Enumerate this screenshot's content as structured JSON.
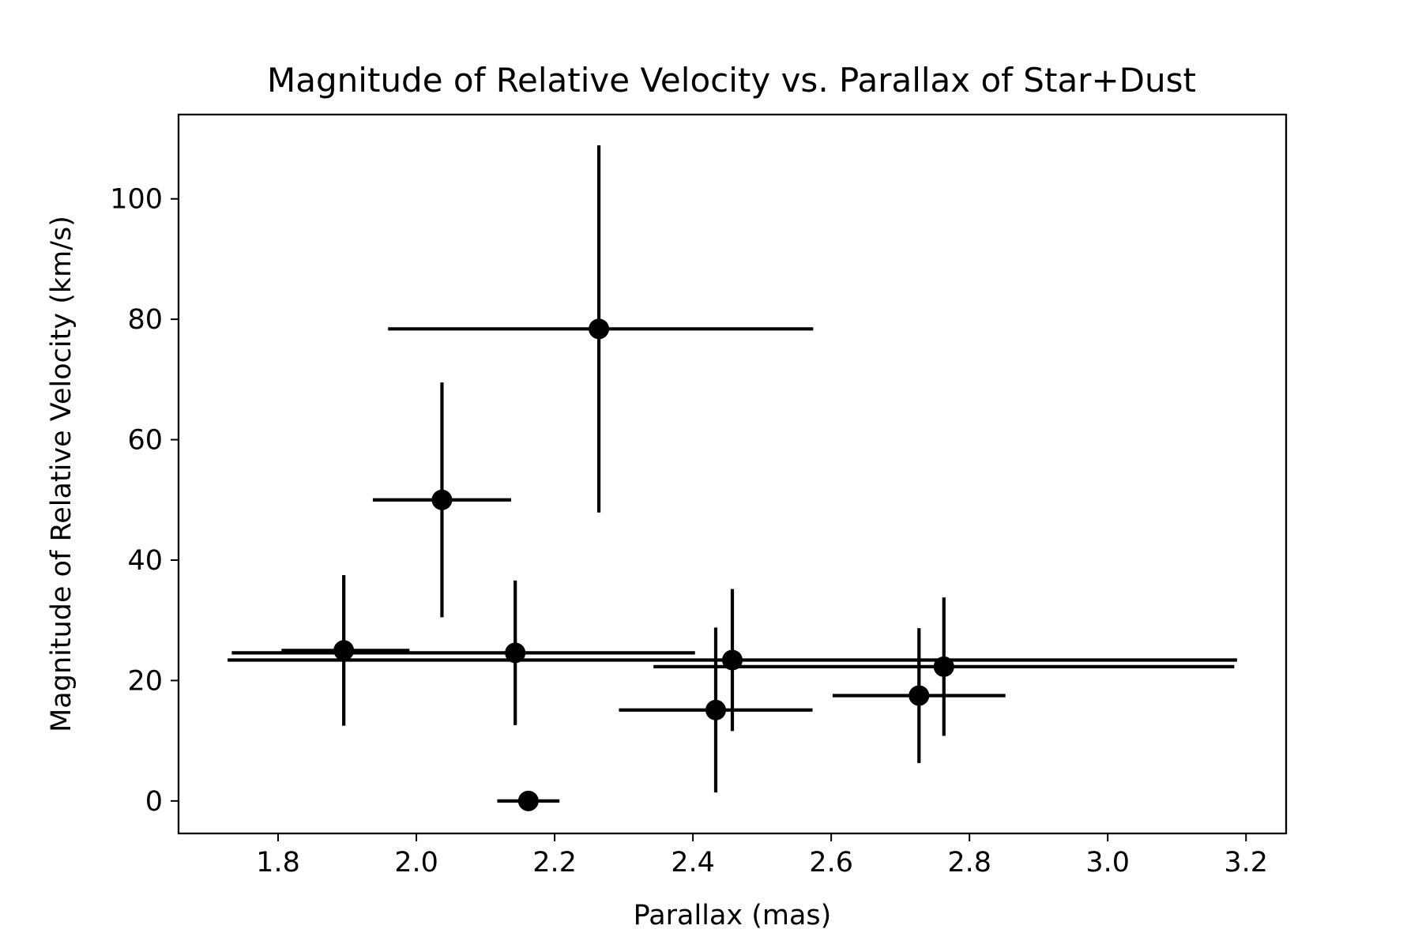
{
  "chart_data": {
    "type": "scatter",
    "title": "Magnitude of Relative Velocity vs. Parallax of Star+Dust",
    "xlabel": "Parallax (mas)",
    "ylabel": "Magnitude of Relative Velocity (km/s)",
    "xlim": [
      1.656,
      3.258
    ],
    "ylim": [
      -5.4,
      114
    ],
    "xticks": [
      1.8,
      2.0,
      2.2,
      2.4,
      2.6,
      2.8,
      3.0,
      3.2
    ],
    "xtick_labels": [
      "1.8",
      "2.0",
      "2.2",
      "2.4",
      "2.6",
      "2.8",
      "3.0",
      "3.2"
    ],
    "yticks": [
      0,
      20,
      40,
      60,
      80,
      100
    ],
    "ytick_labels": [
      "0",
      "20",
      "40",
      "60",
      "80",
      "100"
    ],
    "grid": false,
    "marker_color": "#000000",
    "points": [
      {
        "x": 1.895,
        "y": 25.0,
        "xerr": [
          0.09,
          0.095
        ],
        "yerr": [
          12.5,
          12.5
        ]
      },
      {
        "x": 2.037,
        "y": 50.0,
        "xerr": [
          0.1,
          0.1
        ],
        "yerr": [
          19.5,
          19.5
        ]
      },
      {
        "x": 2.143,
        "y": 24.6,
        "xerr": [
          0.41,
          0.26
        ],
        "yerr": [
          12.0,
          12.0
        ]
      },
      {
        "x": 2.162,
        "y": 0.0,
        "xerr": [
          0.045,
          0.045
        ],
        "yerr": [
          0.0,
          0.0
        ]
      },
      {
        "x": 2.264,
        "y": 78.4,
        "xerr": [
          0.305,
          0.31
        ],
        "yerr": [
          30.5,
          30.5
        ]
      },
      {
        "x": 2.433,
        "y": 15.1,
        "xerr": [
          0.14,
          0.14
        ],
        "yerr": [
          13.7,
          13.7
        ]
      },
      {
        "x": 2.457,
        "y": 23.4,
        "xerr": [
          0.73,
          0.73
        ],
        "yerr": [
          11.8,
          11.8
        ]
      },
      {
        "x": 2.727,
        "y": 17.5,
        "xerr": [
          0.125,
          0.125
        ],
        "yerr": [
          11.2,
          11.2
        ]
      },
      {
        "x": 2.763,
        "y": 22.3,
        "xerr": [
          0.42,
          0.42
        ],
        "yerr": [
          11.5,
          11.5
        ]
      }
    ]
  }
}
